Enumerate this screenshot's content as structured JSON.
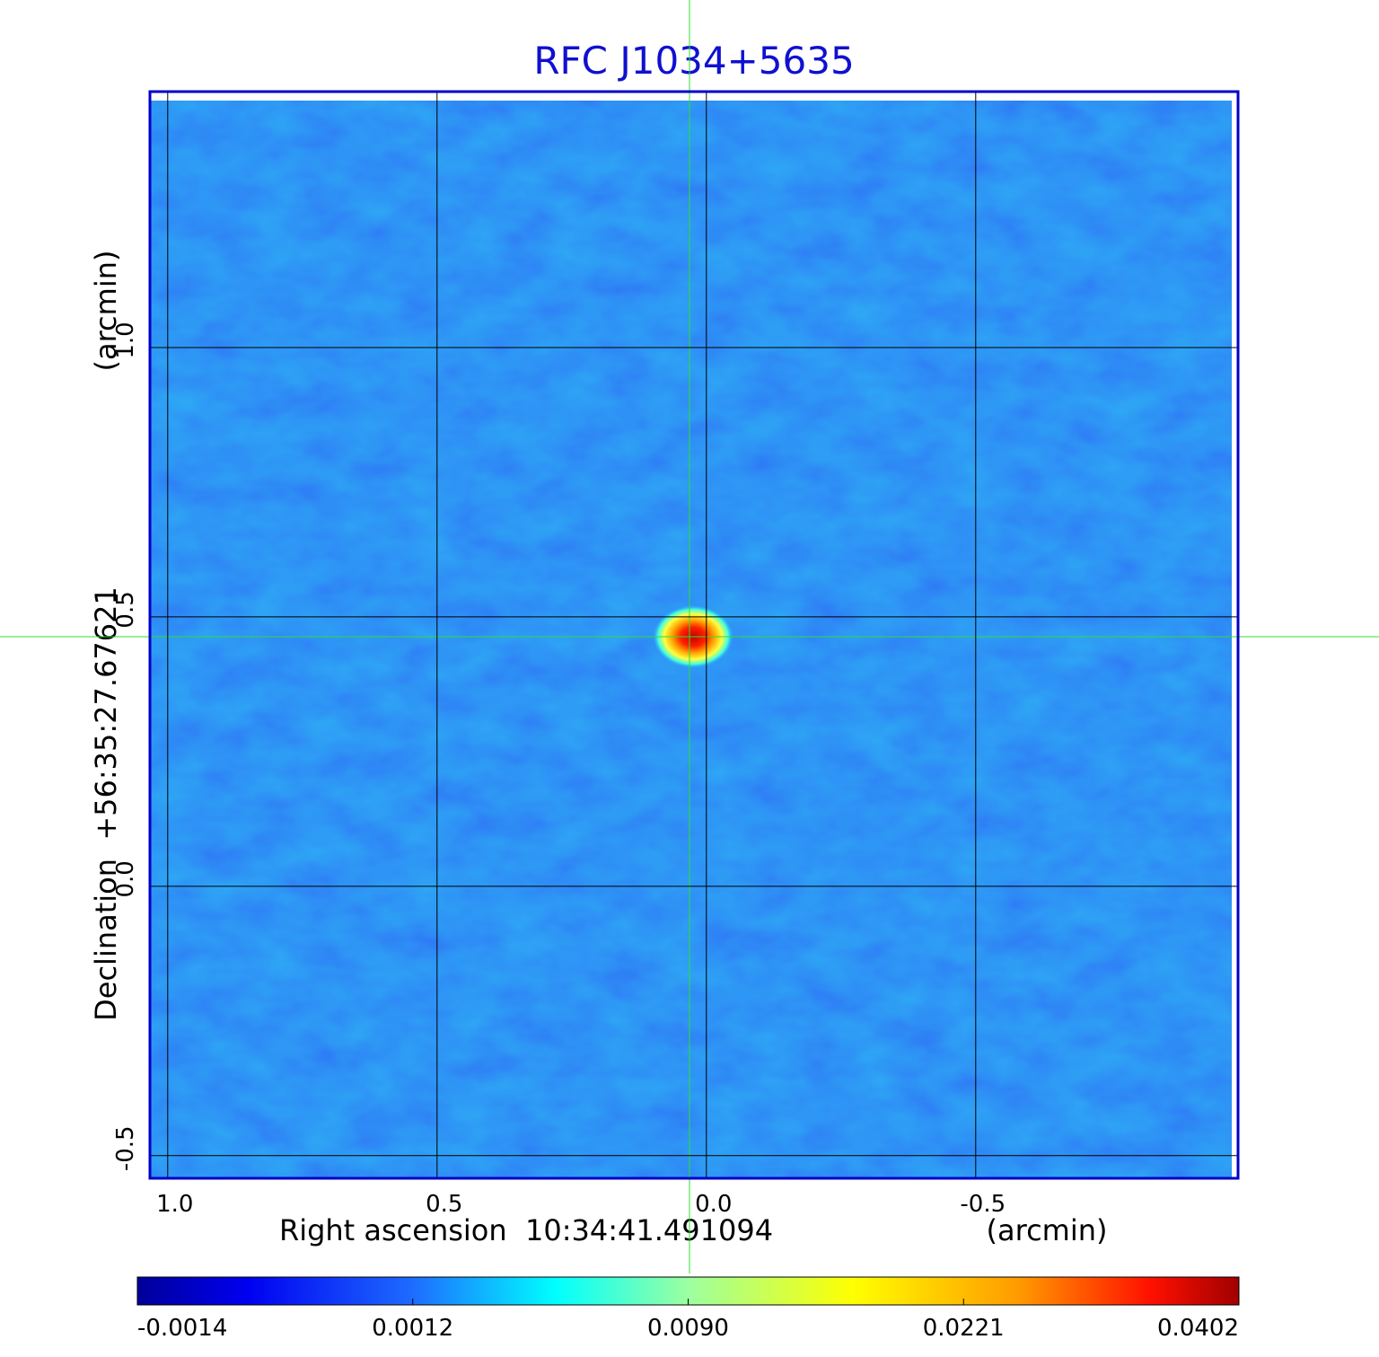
{
  "chart_data": {
    "type": "image",
    "title": "RFC J1034+5635",
    "x_label": "Right ascension  10:34:41.491094",
    "x_unit": "(arcmin)",
    "y_label": "Declination  +56:35:27.67621",
    "y_unit": "(arcmin)",
    "xlim": [
      1.033,
      -0.987
    ],
    "ylim": [
      -0.542,
      1.475
    ],
    "xticks": [
      {
        "value": 1,
        "label": "1.0"
      },
      0.5,
      {
        "value": 0,
        "label": "0.0"
      },
      -0.5
    ],
    "yticks": [
      -0.5,
      {
        "value": 0,
        "label": "0.0"
      },
      0.5,
      {
        "value": 1,
        "label": "1.0"
      }
    ],
    "grid": true,
    "colorbar": {
      "ticks": [
        -0.0014,
        0.0012,
        {
          "value": 0.009,
          "label": "0.0090"
        },
        0.0221,
        0.0402
      ]
    }
  }
}
